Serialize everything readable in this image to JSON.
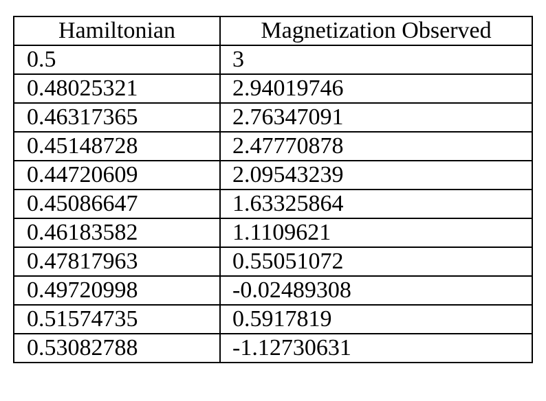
{
  "table": {
    "columns": [
      "Hamiltonian",
      "Magnetization Observed"
    ],
    "rows": [
      [
        "0.5",
        "3"
      ],
      [
        "0.48025321",
        "2.94019746"
      ],
      [
        "0.46317365",
        "2.76347091"
      ],
      [
        "0.45148728",
        "2.47770878"
      ],
      [
        "0.44720609",
        "2.09543239"
      ],
      [
        "0.45086647",
        "1.63325864"
      ],
      [
        "0.46183582",
        "1.1109621"
      ],
      [
        "0.47817963",
        "0.55051072"
      ],
      [
        "0.49720998",
        "-0.02489308"
      ],
      [
        "0.51574735",
        "0.5917819"
      ],
      [
        "0.53082788",
        "-1.12730631"
      ]
    ]
  }
}
